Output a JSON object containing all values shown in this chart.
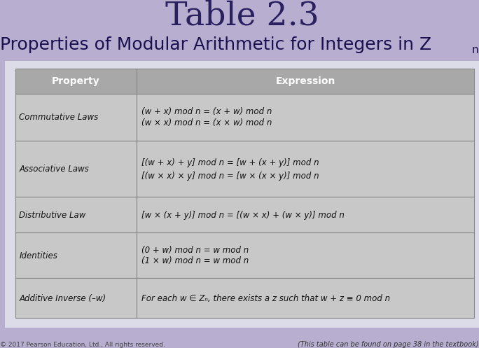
{
  "title": "Table 2.3",
  "subtitle": "Properties of Modular Arithmetic for Integers in Z",
  "subtitle_n": "n",
  "bg_color": "#b8afd0",
  "table_area_bg": "#dcdce8",
  "table_header_bg": "#a8a8a8",
  "table_row_bg": "#c8c8c8",
  "table_border_color": "#888888",
  "title_color": "#2a2060",
  "subtitle_color": "#1a1050",
  "col_headers": [
    "Property",
    "Expression"
  ],
  "rows": [
    {
      "property": "Commutative Laws",
      "expressions": [
        "(w + x) mod n = (x + w) mod n",
        "(w × x) mod n = (x × w) mod n"
      ]
    },
    {
      "property": "Associative Laws",
      "expressions": [
        "[(w + x) + y] mod n = [w + (x + y)] mod n",
        "[(w × x) × y] mod n = [w × (x × y)] mod n"
      ]
    },
    {
      "property": "Distributive Law",
      "expressions": [
        "[w × (x + y)] mod n = [(w × x) + (w × y)] mod n"
      ]
    },
    {
      "property": "Identities",
      "expressions": [
        "(0 + w) mod n = w mod n",
        "(1 × w) mod n = w mod n"
      ]
    },
    {
      "property": "Additive Inverse (–w)",
      "expressions": [
        "For each w ∈ Zₙ, there exists a z such that w + z ≡ 0 mod n"
      ]
    }
  ],
  "footer_left": "© 2017 Pearson Education, Ltd., All rights reserved.",
  "footer_right": "(This table can be found on page 38 in the textbook)",
  "title_fontsize": 34,
  "subtitle_fontsize": 18,
  "col_header_fontsize": 10,
  "row_fontsize": 8.5
}
